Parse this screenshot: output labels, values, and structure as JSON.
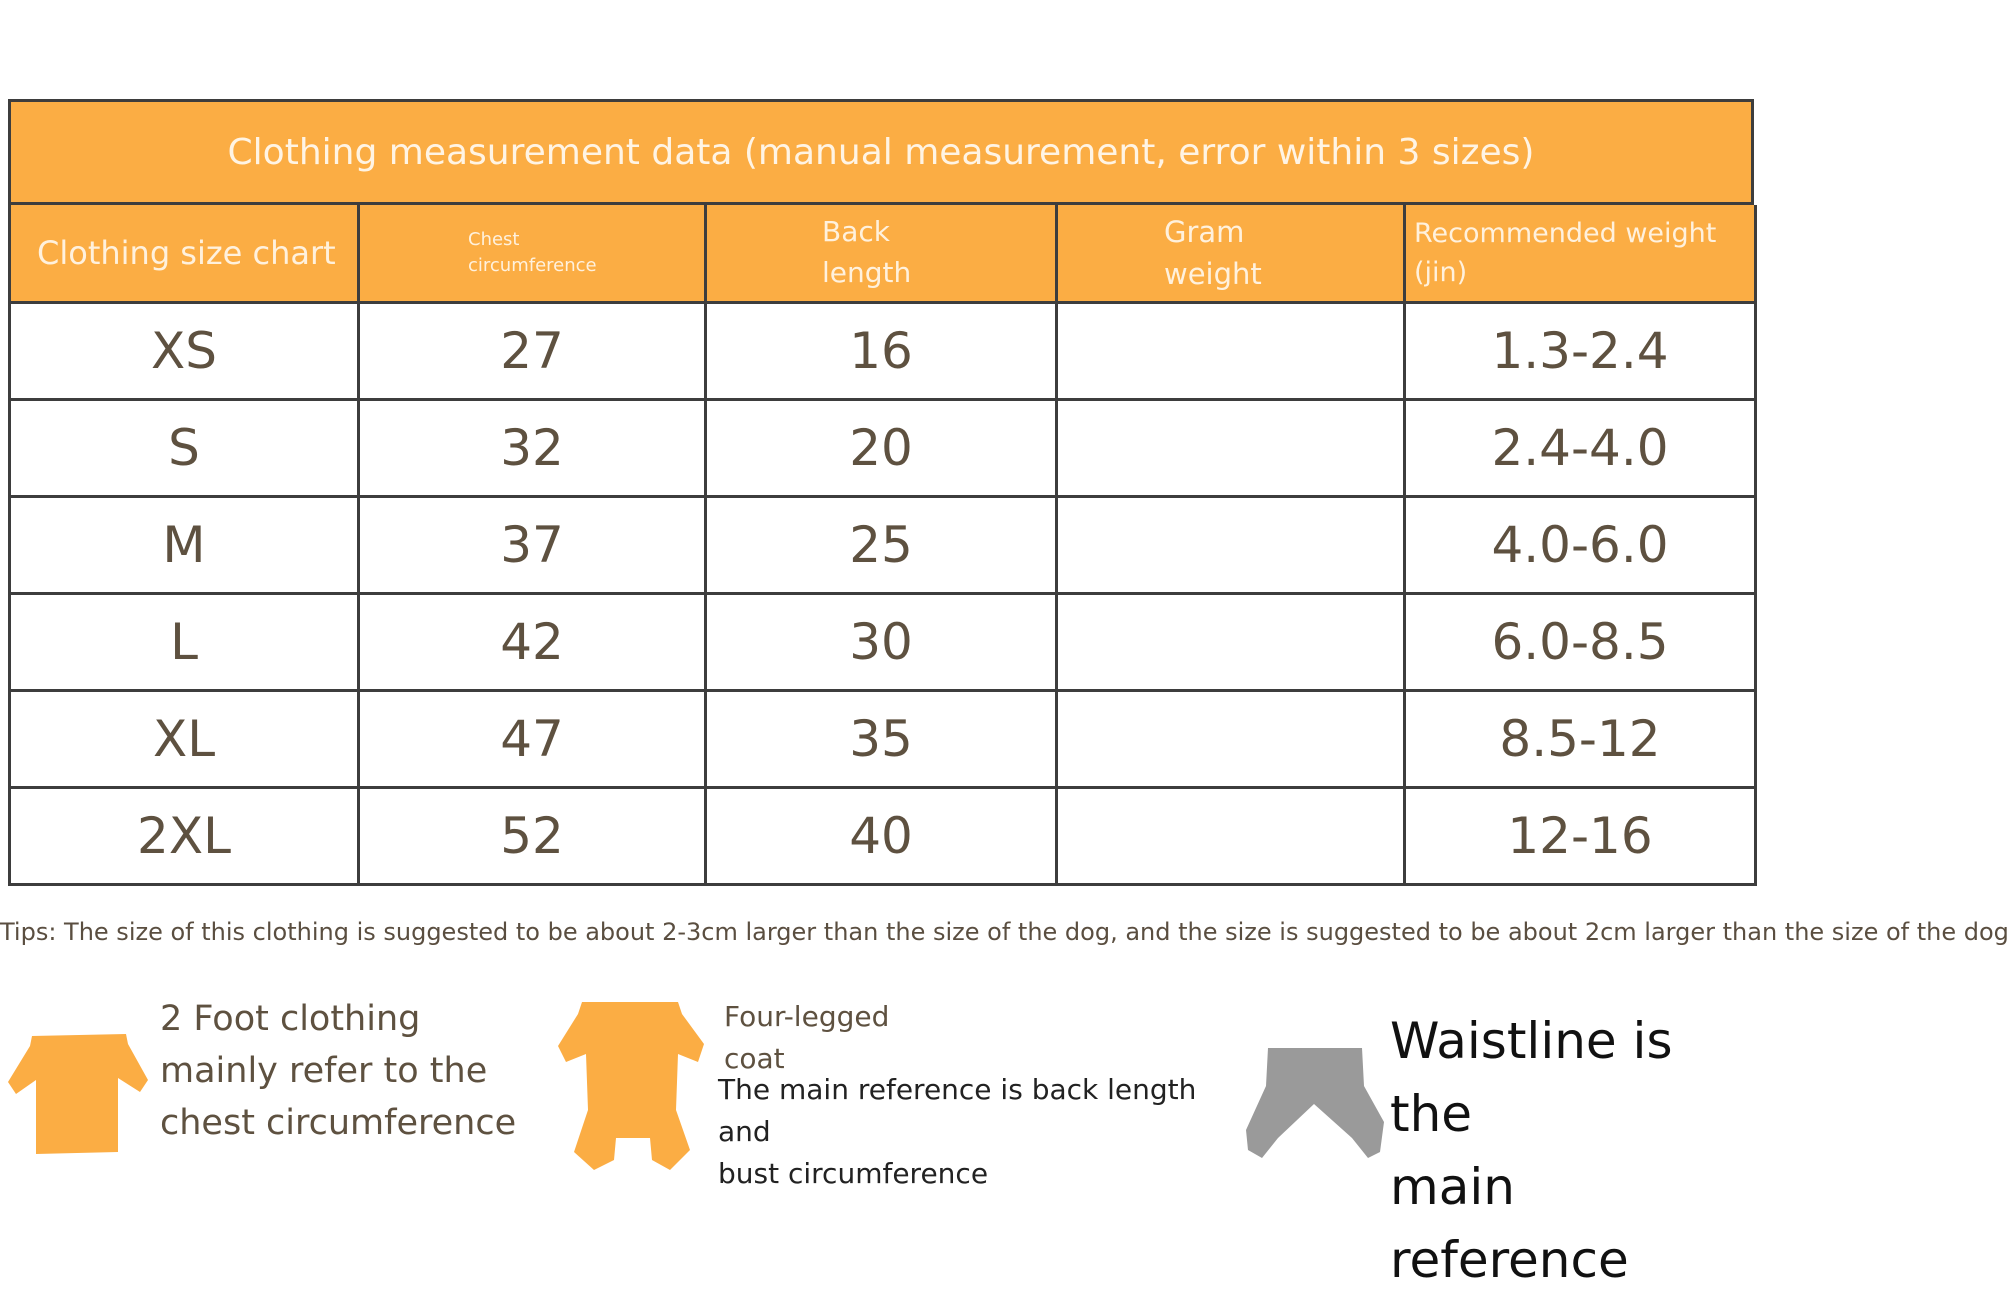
{
  "table": {
    "title": "Clothing measurement data (manual measurement, error within 3 sizes)",
    "headers": {
      "size": "Clothing size chart",
      "chest_line1": "Chest",
      "chest_line2": "circumference",
      "back_line1": "Back",
      "back_line2": "length",
      "gram_line1": "Gram",
      "gram_line2": "weight",
      "weight_line1": "Recommended weight",
      "weight_line2": "(jin)"
    },
    "rows": [
      {
        "size": "XS",
        "chest": "27",
        "back": "16",
        "gram": "",
        "weight": "1.3-2.4"
      },
      {
        "size": "S",
        "chest": "32",
        "back": "20",
        "gram": "",
        "weight": "2.4-4.0"
      },
      {
        "size": "M",
        "chest": "37",
        "back": "25",
        "gram": "",
        "weight": "4.0-6.0"
      },
      {
        "size": "L",
        "chest": "42",
        "back": "30",
        "gram": "",
        "weight": "6.0-8.5"
      },
      {
        "size": "XL",
        "chest": "47",
        "back": "35",
        "gram": "",
        "weight": "8.5-12"
      },
      {
        "size": "2XL",
        "chest": "52",
        "back": "40",
        "gram": "",
        "weight": "12-16"
      }
    ]
  },
  "tips": "Tips: The size of this clothing is suggested to be about 2-3cm larger than the size of the dog, and the size is suggested to be about 2cm larger than the size of the dog",
  "guides": {
    "two_foot": {
      "line1": "2 Foot clothing",
      "line2": "mainly refer to the",
      "line3": "chest circumference",
      "icon": "two-leg-shirt-icon"
    },
    "four_leg": {
      "title_line1": "Four-legged",
      "title_line2": "coat",
      "desc_line1": "The main reference is back length and",
      "desc_line2": "bust circumference",
      "icon": "four-leg-coat-icon"
    },
    "waistline": {
      "line1": "Waistline is the",
      "line2": "main reference",
      "icon": "belly-band-icon"
    }
  },
  "colors": {
    "header_orange": "#fbad44",
    "header_text": "#fff1dd",
    "cell_text": "#5e5140",
    "border": "#3d3d3d",
    "icon_gray": "#9a9a9a"
  }
}
